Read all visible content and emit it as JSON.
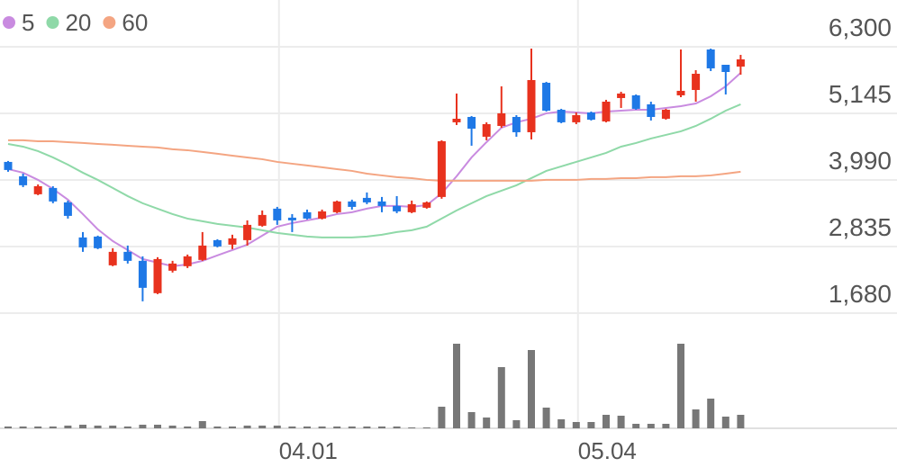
{
  "chart_data": {
    "type": "candlestick",
    "categories": [
      null,
      null,
      null,
      null,
      null,
      null,
      null,
      null,
      null,
      null,
      null,
      null,
      null,
      null,
      null,
      null,
      null,
      null,
      "04.01",
      null,
      null,
      null,
      null,
      null,
      null,
      null,
      null,
      null,
      null,
      null,
      null,
      null,
      null,
      null,
      null,
      null,
      null,
      null,
      "05.04",
      null,
      null,
      null,
      null,
      null,
      null,
      null,
      null,
      null,
      null,
      null
    ],
    "open": [
      4303,
      4054,
      3742,
      3851,
      3601,
      2993,
      3008,
      2509,
      2743,
      2587,
      2026,
      2416,
      2494,
      2603,
      2946,
      2868,
      2946,
      3196,
      3492,
      3336,
      3430,
      3320,
      3430,
      3617,
      3679,
      3617,
      3539,
      3430,
      3508,
      3695,
      4990,
      5083,
      4740,
      4927,
      5083,
      4818,
      5676,
      5208,
      4990,
      5161,
      5005,
      5411,
      5458,
      5302,
      5052,
      5458,
      5551,
      6253,
      5988,
      5957
    ],
    "high": [
      4319,
      4100,
      3913,
      3882,
      3632,
      3086,
      3024,
      2806,
      2852,
      2665,
      2650,
      2587,
      2696,
      3086,
      2962,
      3040,
      3289,
      3461,
      3523,
      3398,
      3476,
      3476,
      3632,
      3648,
      3773,
      3695,
      3710,
      3632,
      3617,
      4678,
      5489,
      5099,
      4990,
      5614,
      5114,
      6269,
      5692,
      5224,
      5161,
      5177,
      5380,
      5520,
      5473,
      5348,
      5224,
      6253,
      5894,
      6269,
      5988,
      6160
    ],
    "low": [
      4132,
      3866,
      3726,
      3586,
      3320,
      2743,
      2790,
      2494,
      2540,
      1885,
      2010,
      2384,
      2462,
      2587,
      2821,
      2790,
      2852,
      3180,
      3211,
      3086,
      3305,
      3305,
      3414,
      3476,
      3570,
      3430,
      3414,
      3414,
      3492,
      3664,
      4943,
      4584,
      4678,
      4896,
      4740,
      4693,
      5177,
      4974,
      4958,
      5021,
      4990,
      5239,
      5208,
      5021,
      5036,
      5426,
      5348,
      5879,
      5473,
      5816
    ],
    "close": [
      4163,
      3898,
      3882,
      3617,
      3367,
      2821,
      2806,
      2743,
      2587,
      2119,
      2618,
      2540,
      2665,
      2852,
      2837,
      2977,
      3211,
      3383,
      3289,
      3289,
      3320,
      3445,
      3617,
      3523,
      3601,
      3539,
      3445,
      3570,
      3601,
      4662,
      5052,
      4880,
      4958,
      5146,
      4818,
      5723,
      5192,
      4990,
      5114,
      5036,
      5348,
      5489,
      5224,
      5083,
      5208,
      5536,
      5832,
      5926,
      5863,
      6082
    ],
    "up_color": "#e8321e",
    "down_color": "#1e78e6",
    "series": [
      {
        "name": "5",
        "color": "#c98be0",
        "values": [
          4178,
          4116,
          3991,
          3835,
          3648,
          3398,
          3133,
          2930,
          2774,
          2618,
          2556,
          2494,
          2525,
          2587,
          2681,
          2774,
          2868,
          3024,
          3180,
          3242,
          3289,
          3336,
          3398,
          3430,
          3492,
          3539,
          3539,
          3523,
          3554,
          3757,
          4054,
          4381,
          4646,
          4896,
          4990,
          5052,
          5146,
          5177,
          5161,
          5146,
          5177,
          5192,
          5208,
          5208,
          5239,
          5270,
          5317,
          5442,
          5614,
          5848
        ]
      },
      {
        "name": "20",
        "color": "#8fd9a8",
        "values": [
          4615,
          4568,
          4490,
          4381,
          4256,
          4116,
          3991,
          3851,
          3710,
          3586,
          3492,
          3398,
          3320,
          3274,
          3227,
          3196,
          3164,
          3118,
          3071,
          3040,
          3008,
          2993,
          2993,
          2993,
          3008,
          3040,
          3086,
          3118,
          3180,
          3320,
          3461,
          3586,
          3710,
          3804,
          3898,
          4022,
          4147,
          4225,
          4303,
          4381,
          4459,
          4568,
          4631,
          4709,
          4771,
          4834,
          4927,
          5052,
          5192,
          5302
        ]
      },
      {
        "name": "60",
        "color": "#f4a582",
        "values": [
          4678,
          4678,
          4662,
          4662,
          4646,
          4631,
          4615,
          4600,
          4584,
          4568,
          4553,
          4522,
          4506,
          4475,
          4444,
          4412,
          4381,
          4350,
          4303,
          4272,
          4241,
          4210,
          4178,
          4147,
          4100,
          4069,
          4038,
          4022,
          3991,
          3976,
          3976,
          3976,
          3976,
          3976,
          3976,
          3976,
          3991,
          3991,
          3991,
          4007,
          4007,
          4022,
          4022,
          4038,
          4038,
          4054,
          4054,
          4069,
          4100,
          4132
        ]
      }
    ],
    "volume": [
      2,
      2,
      2,
      2,
      3,
      4,
      3,
      3,
      2,
      4,
      4,
      3,
      2,
      8,
      2,
      2,
      3,
      3,
      3,
      2,
      2,
      2,
      2,
      2,
      2,
      2,
      2,
      1,
      1,
      24,
      94,
      18,
      12,
      68,
      9,
      87,
      23,
      10,
      7,
      7,
      15,
      14,
      5,
      5,
      5,
      94,
      21,
      33,
      13,
      15
    ],
    "volume_color": "#777777",
    "vlim": [
      0,
      100
    ],
    "ylim": [
      1680,
      6300
    ],
    "yticks": [
      {
        "value": 6300,
        "label": "6,300"
      },
      {
        "value": 5145,
        "label": "5,145"
      },
      {
        "value": 3990,
        "label": "3,990"
      },
      {
        "value": 2835,
        "label": "2,835"
      },
      {
        "value": 1680,
        "label": "1,680"
      }
    ],
    "grid": true
  }
}
